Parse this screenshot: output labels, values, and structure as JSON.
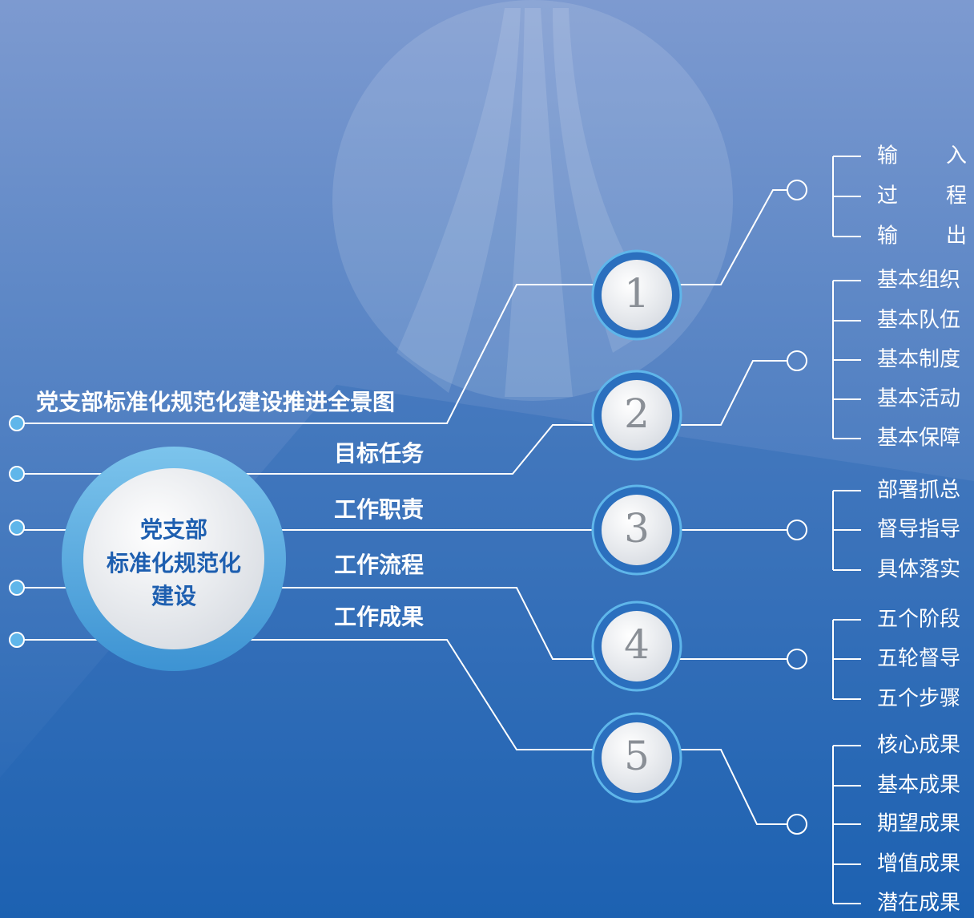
{
  "header": {
    "title": "党支部标准化规范化建设推进全景图"
  },
  "center": {
    "lines": [
      "党支部",
      "标准化规范化",
      "建设"
    ]
  },
  "branches": [
    "目标任务",
    "工作职责",
    "工作流程",
    "工作成果"
  ],
  "nodes": [
    {
      "number": "1",
      "items": [
        "输入",
        "过程",
        "输出"
      ]
    },
    {
      "number": "2",
      "items": [
        "基本组织",
        "基本队伍",
        "基本制度",
        "基本活动",
        "基本保障"
      ]
    },
    {
      "number": "3",
      "items": [
        "部署抓总",
        "督导指导",
        "具体落实"
      ]
    },
    {
      "number": "4",
      "items": [
        "五个阶段",
        "五轮督导",
        "五个步骤"
      ]
    },
    {
      "number": "5",
      "items": [
        "核心成果",
        "基本成果",
        "期望成果",
        "增值成果",
        "潜在成果"
      ]
    }
  ]
}
